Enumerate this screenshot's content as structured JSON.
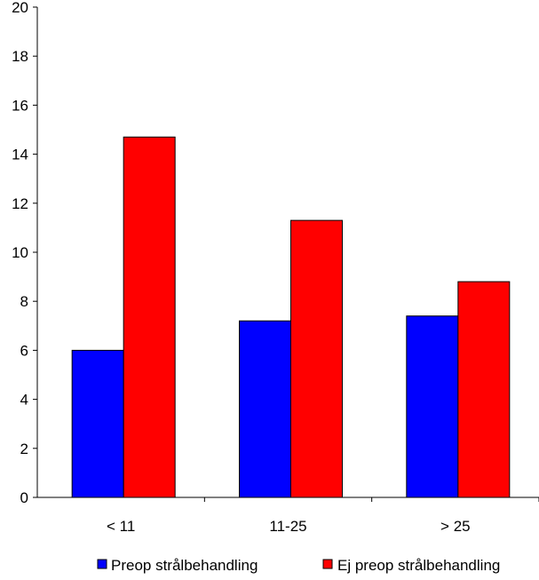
{
  "chart_data": {
    "type": "bar",
    "categories": [
      "< 11",
      "11-25",
      "> 25"
    ],
    "series": [
      {
        "name": "Preop strålbehandling",
        "values": [
          6.0,
          7.2,
          7.4
        ],
        "color": "#0000ff"
      },
      {
        "name": "Ej preop strålbehandling",
        "values": [
          14.7,
          11.3,
          8.8
        ],
        "color": "#ff0000"
      }
    ],
    "ylim": [
      0,
      20
    ],
    "yticks": [
      0,
      2,
      4,
      6,
      8,
      10,
      12,
      14,
      16,
      18,
      20
    ],
    "grid": false,
    "legend": "bottom"
  }
}
